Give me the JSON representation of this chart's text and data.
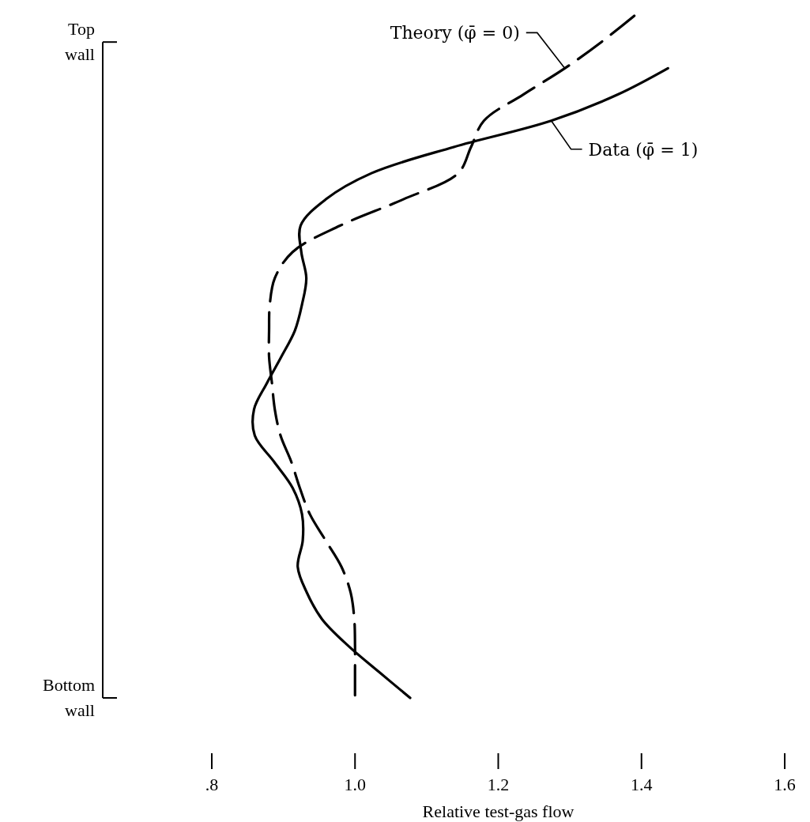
{
  "chart_data": {
    "type": "line",
    "orientation": "horizontal",
    "xlabel": "Relative test-gas flow",
    "xlim": [
      0.8,
      1.6
    ],
    "xticks": [
      {
        "value": 0.8,
        "label": ".8"
      },
      {
        "value": 1.0,
        "label": "1.0"
      },
      {
        "value": 1.2,
        "label": "1.2"
      },
      {
        "value": 1.4,
        "label": "1.4"
      },
      {
        "value": 1.6,
        "label": "1.6"
      }
    ],
    "legend": false,
    "grid": false,
    "marker": "none",
    "categories": [
      null,
      "Top wall",
      null,
      null,
      null,
      null,
      null,
      null,
      null,
      null,
      null,
      null,
      null,
      null,
      null,
      null,
      null,
      null,
      null,
      null,
      null,
      null,
      null,
      null,
      null,
      null,
      "Bottom wall"
    ],
    "series": [
      {
        "name": "Theory (φ̄ = 0)",
        "color": "#000000",
        "line_style": "dashed",
        "values": [
          1.39,
          1.344,
          1.293,
          1.235,
          1.18,
          1.162,
          1.144,
          1.067,
          0.979,
          0.913,
          0.888,
          0.881,
          0.88,
          0.88,
          0.884,
          0.888,
          0.896,
          0.911,
          0.923,
          0.937,
          0.959,
          0.981,
          0.994,
          0.999,
          1.0,
          1.0,
          1.0
        ]
      },
      {
        "name": "Data (φ̄ = 1)",
        "color": "#000000",
        "line_style": "solid",
        "values": [
          null,
          null,
          1.437,
          1.367,
          1.274,
          1.138,
          1.023,
          0.959,
          0.924,
          0.925,
          0.932,
          0.926,
          0.916,
          0.897,
          0.877,
          0.859,
          0.86,
          0.887,
          0.913,
          0.926,
          0.927,
          0.92,
          0.933,
          0.954,
          0.99,
          1.033,
          1.077
        ]
      }
    ]
  }
}
